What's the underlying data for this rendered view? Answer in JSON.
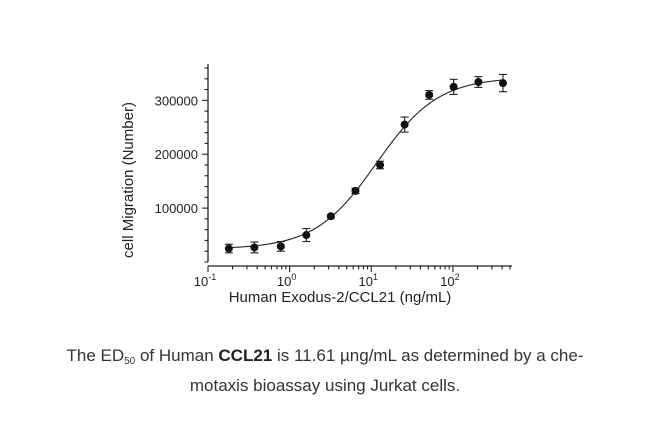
{
  "chart_data": {
    "type": "scatter",
    "xscale": "log",
    "xlim": [
      0.1,
      500
    ],
    "ylim": [
      0,
      360000
    ],
    "xlabel": "Human Exodus-2/CCL21 (ng/mL)",
    "ylabel": "cell Migration (Number)",
    "xticks": [
      {
        "base": "10",
        "exp": "-1",
        "value": 0.1
      },
      {
        "base": "10",
        "exp": "0",
        "value": 1
      },
      {
        "base": "10",
        "exp": "1",
        "value": 10
      },
      {
        "base": "10",
        "exp": "2",
        "value": 100
      }
    ],
    "yticks": [
      {
        "label": "100000",
        "value": 100000
      },
      {
        "label": "200000",
        "value": 200000
      },
      {
        "label": "300000",
        "value": 300000
      }
    ],
    "series": [
      {
        "x": [
          0.18,
          0.37,
          0.78,
          1.6,
          3.2,
          6.4,
          12.8,
          25.6,
          51.2,
          102,
          205,
          410
        ],
        "y": [
          25000,
          27000,
          29000,
          50000,
          85000,
          132000,
          180000,
          255000,
          310000,
          325000,
          334000,
          332000
        ],
        "error": [
          8000,
          10000,
          9000,
          12000,
          3000,
          5000,
          7000,
          14000,
          8000,
          14000,
          10000,
          16000
        ]
      }
    ],
    "fit": {
      "type": "4PL",
      "bottom": 24000,
      "top": 343000,
      "ec50": 11.61,
      "hill": 1.15
    }
  },
  "caption": {
    "t1": "The ED",
    "t1_sub": "50",
    "t2": " of Human ",
    "t3": "CCL21",
    "t4": " is 11.61 µng/mL as determined by a che-",
    "line2": "motaxis bioassay using Jurkat cells."
  }
}
